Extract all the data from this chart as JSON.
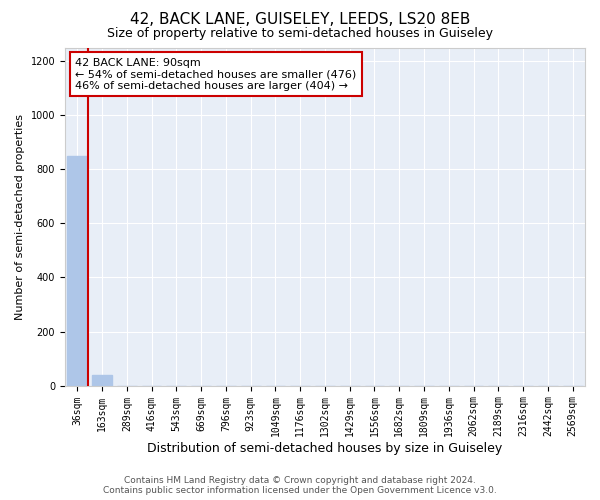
{
  "title": "42, BACK LANE, GUISELEY, LEEDS, LS20 8EB",
  "subtitle": "Size of property relative to semi-detached houses in Guiseley",
  "xlabel": "Distribution of semi-detached houses by size in Guiseley",
  "ylabel": "Number of semi-detached properties",
  "footer_line1": "Contains HM Land Registry data © Crown copyright and database right 2024.",
  "footer_line2": "Contains public sector information licensed under the Open Government Licence v3.0.",
  "bar_categories": [
    "36sqm",
    "163sqm",
    "289sqm",
    "416sqm",
    "543sqm",
    "669sqm",
    "796sqm",
    "923sqm",
    "1049sqm",
    "1176sqm",
    "1302sqm",
    "1429sqm",
    "1556sqm",
    "1682sqm",
    "1809sqm",
    "1936sqm",
    "2062sqm",
    "2189sqm",
    "2316sqm",
    "2442sqm",
    "2569sqm"
  ],
  "bar_values": [
    848,
    38,
    0,
    0,
    0,
    0,
    0,
    0,
    0,
    0,
    0,
    0,
    0,
    0,
    0,
    0,
    0,
    0,
    0,
    0,
    0
  ],
  "bar_color": "#aec6e8",
  "property_label": "42 BACK LANE: 90sqm",
  "annotation_line1": "← 54% of semi-detached houses are smaller (476)",
  "annotation_line2": "46% of semi-detached houses are larger (404) →",
  "vline_color": "#cc0000",
  "vline_position": 0.43,
  "ylim": [
    0,
    1250
  ],
  "yticks": [
    0,
    200,
    400,
    600,
    800,
    1000,
    1200
  ],
  "annotation_box_facecolor": "#ffffff",
  "annotation_box_edgecolor": "#cc0000",
  "background_color": "#e8eef7",
  "title_fontsize": 11,
  "subtitle_fontsize": 9,
  "bar_fontsize": 7,
  "ylabel_fontsize": 8,
  "xlabel_fontsize": 9,
  "annotation_fontsize": 8,
  "footer_fontsize": 6.5
}
